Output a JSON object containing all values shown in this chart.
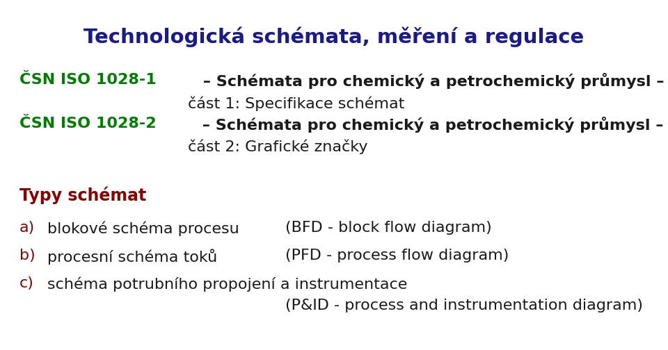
{
  "bg": "#ffffff",
  "title": "Technologická schémata, měření a regulace",
  "title_color": "#1a1a8c",
  "title_fontsize": 21,
  "csn1_label": "ČSN ISO 1028-1",
  "csn1_rest": " – Schémata pro chemický a petrochemický průmysl –",
  "csn1_line2": "část 1: Specifikace schémat",
  "csn2_label": "ČSN ISO 1028-2",
  "csn2_rest": " – Schémata pro chemický a petrochemický průmysl –",
  "csn2_line2": "část 2: Grafické značky",
  "green": "#008000",
  "black": "#1a1a1a",
  "darkred": "#8b0000",
  "section": "Typy schémat",
  "item_a_letter": "a)",
  "item_a_text": "blokové schéma procesu",
  "item_a_eng": "(BFD - block flow diagram)",
  "item_b_letter": "b)",
  "item_b_text": "procesní schéma toků",
  "item_b_eng": "(PFD - process flow diagram)",
  "item_c_letter": "c)",
  "item_c_text": "schéma potrubního propojení a instrumentace",
  "item_c_eng": "(P&ID - process and instrumentation diagram)",
  "font_main": 16,
  "font_title": 21,
  "font_section": 17
}
